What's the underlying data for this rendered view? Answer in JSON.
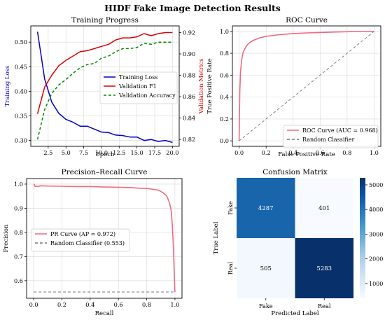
{
  "figure": {
    "title": "HIDF Fake Image Detection Results"
  },
  "chart_data": [
    {
      "id": "training",
      "type": "line",
      "title": "Training Progress",
      "xlabel": "Epoch",
      "ylabel": "Training Loss",
      "ylabel_right": "Validation Metrics",
      "xlim": [
        0.05,
        20.95
      ],
      "ylim": [
        0.288,
        0.533
      ],
      "ylim_right": [
        0.8135,
        0.9262
      ],
      "xticks": [
        2.5,
        5.0,
        7.5,
        10.0,
        12.5,
        15.0,
        17.5,
        20.0
      ],
      "yticks": [
        0.3,
        0.35,
        0.4,
        0.45,
        0.5
      ],
      "yticks_right": [
        0.82,
        0.84,
        0.86,
        0.88,
        0.9,
        0.92
      ],
      "legend_position": "center-right",
      "grid": true,
      "colors": {
        "loss": "#0000cc",
        "f1": "#dd0000",
        "acc": "#008800"
      },
      "x": [
        1,
        2,
        3,
        4,
        5,
        6,
        7,
        8,
        9,
        10,
        11,
        12,
        13,
        14,
        15,
        16,
        17,
        18,
        19,
        20
      ],
      "series": [
        {
          "name": "Training Loss",
          "axis": "left",
          "color": "#0000cc",
          "dash": "solid",
          "values": [
            0.521,
            0.425,
            0.378,
            0.355,
            0.343,
            0.337,
            0.329,
            0.329,
            0.323,
            0.317,
            0.316,
            0.311,
            0.31,
            0.307,
            0.307,
            0.3,
            0.302,
            0.298,
            0.3,
            0.296
          ]
        },
        {
          "name": "Validation F1",
          "axis": "right",
          "color": "#dd0000",
          "dash": "solid",
          "values": [
            0.844,
            0.869,
            0.88,
            0.889,
            0.894,
            0.898,
            0.902,
            0.903,
            0.905,
            0.907,
            0.909,
            0.913,
            0.915,
            0.915,
            0.916,
            0.919,
            0.917,
            0.919,
            0.92,
            0.92
          ]
        },
        {
          "name": "Validation Accuracy",
          "axis": "right",
          "color": "#008800",
          "dash": "dashed",
          "values": [
            0.82,
            0.848,
            0.863,
            0.871,
            0.876,
            0.882,
            0.887,
            0.89,
            0.891,
            0.896,
            0.898,
            0.902,
            0.905,
            0.905,
            0.906,
            0.91,
            0.909,
            0.911,
            0.911,
            0.911
          ]
        }
      ]
    },
    {
      "id": "roc",
      "type": "line",
      "title": "ROC Curve",
      "xlabel": "False Positive Rate",
      "ylabel": "True Positive Rate",
      "xlim": [
        -0.05,
        1.05
      ],
      "ylim": [
        -0.05,
        1.05
      ],
      "xticks": [
        0.0,
        0.2,
        0.4,
        0.6,
        0.8,
        1.0
      ],
      "yticks": [
        0.0,
        0.2,
        0.4,
        0.6,
        0.8,
        1.0
      ],
      "legend_position": "lower-right",
      "grid": true,
      "colors": {
        "curve": "#f06a7f",
        "baseline": "#777777"
      },
      "series": [
        {
          "name": "ROC Curve (AUC = 0.968)",
          "color": "#f06a7f",
          "dash": "solid",
          "x": [
            0.0,
            0.005,
            0.01,
            0.02,
            0.03,
            0.05,
            0.07,
            0.1,
            0.15,
            0.2,
            0.3,
            0.4,
            0.5,
            0.6,
            0.7,
            0.8,
            0.9,
            1.0
          ],
          "y": [
            0.0,
            0.45,
            0.63,
            0.75,
            0.81,
            0.86,
            0.89,
            0.915,
            0.94,
            0.955,
            0.97,
            0.98,
            0.986,
            0.99,
            0.994,
            0.997,
            0.999,
            1.0
          ]
        },
        {
          "name": "Random Classifier",
          "color": "#777777",
          "dash": "dashed",
          "x": [
            0.0,
            1.0
          ],
          "y": [
            0.0,
            1.0
          ]
        }
      ]
    },
    {
      "id": "pr",
      "type": "line",
      "title": "Precision–Recall Curve",
      "xlabel": "Recall",
      "ylabel": "Precision",
      "xlim": [
        -0.05,
        1.05
      ],
      "ylim": [
        0.527,
        1.023
      ],
      "xticks": [
        0.0,
        0.2,
        0.4,
        0.6,
        0.8,
        1.0
      ],
      "yticks": [
        0.6,
        0.7,
        0.8,
        0.9,
        1.0
      ],
      "legend_position": "center-left",
      "grid": true,
      "colors": {
        "curve": "#f06a7f",
        "baseline": "#777777"
      },
      "series": [
        {
          "name": "PR Curve (AP = 0.972)",
          "color": "#f06a7f",
          "dash": "solid",
          "x": [
            0.0,
            0.005,
            0.01,
            0.02,
            0.03,
            0.05,
            0.1,
            0.2,
            0.3,
            0.4,
            0.5,
            0.6,
            0.7,
            0.75,
            0.8,
            0.85,
            0.88,
            0.9,
            0.92,
            0.94,
            0.95,
            0.96,
            0.97,
            0.975,
            0.98,
            0.985,
            0.99,
            0.995,
            1.0
          ],
          "y": [
            1.0,
            0.998,
            0.99,
            0.992,
            0.99,
            0.993,
            0.992,
            0.991,
            0.99,
            0.99,
            0.988,
            0.987,
            0.985,
            0.983,
            0.982,
            0.978,
            0.975,
            0.97,
            0.962,
            0.952,
            0.94,
            0.925,
            0.9,
            0.88,
            0.84,
            0.79,
            0.72,
            0.63,
            0.553
          ]
        },
        {
          "name": "Random Classifier (0.553)",
          "color": "#777777",
          "dash": "dashed",
          "x": [
            0.0,
            1.0
          ],
          "y": [
            0.553,
            0.553
          ]
        }
      ]
    },
    {
      "id": "confusion",
      "type": "heatmap",
      "title": "Confusion Matrix",
      "xlabel": "Predicted Label",
      "ylabel": "True Label",
      "x_categories": [
        "Fake",
        "Real"
      ],
      "y_categories": [
        "Fake",
        "Real"
      ],
      "values": [
        [
          4287,
          401
        ],
        [
          505,
          5283
        ]
      ],
      "colorbar": {
        "min": 401,
        "max": 5283,
        "ticks": [
          1000,
          2000,
          3000,
          4000,
          5000
        ]
      },
      "colors": {
        "low": "#f7fbff",
        "high": "#08306b"
      }
    }
  ]
}
